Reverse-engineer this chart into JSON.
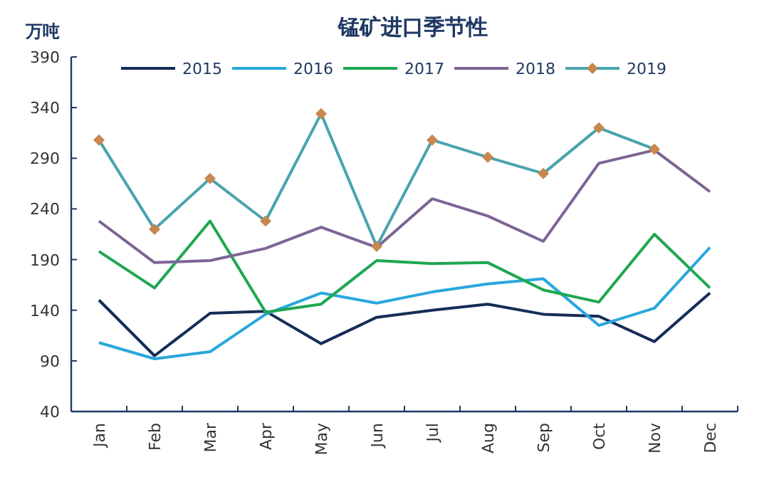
{
  "chart_data": {
    "type": "line",
    "title": "锰矿进口季节性",
    "ylabel": "万吨",
    "categories": [
      "Jan",
      "Feb",
      "Mar",
      "Apr",
      "May",
      "Jun",
      "Jul",
      "Aug",
      "Sep",
      "Oct",
      "Nov",
      "Dec"
    ],
    "ylim": [
      40,
      390
    ],
    "yticks": [
      40,
      90,
      140,
      190,
      240,
      290,
      340,
      390
    ],
    "grid": false,
    "legend": "top",
    "marker": "none",
    "series": [
      {
        "name": "2015",
        "color": "#152d57",
        "values": [
          150,
          95,
          137,
          139,
          107,
          133,
          140,
          146,
          136,
          134,
          109,
          157
        ]
      },
      {
        "name": "2016",
        "color": "#29a7dd",
        "values": [
          108,
          92,
          99,
          136,
          157,
          147,
          158,
          166,
          171,
          125,
          142,
          202
        ]
      },
      {
        "name": "2017",
        "color": "#1fa751",
        "values": [
          198,
          162,
          228,
          138,
          146,
          189,
          186,
          187,
          160,
          148,
          215,
          162
        ]
      },
      {
        "name": "2018",
        "color": "#7d6496",
        "values": [
          228,
          187,
          189,
          201,
          222,
          202,
          250,
          233,
          208,
          285,
          298,
          257
        ]
      },
      {
        "name": "2019",
        "color": "#4aa3ad",
        "marker": "diamond",
        "values": [
          308,
          220,
          270,
          228,
          334,
          203,
          308,
          291,
          275,
          320,
          299,
          null
        ]
      }
    ]
  }
}
